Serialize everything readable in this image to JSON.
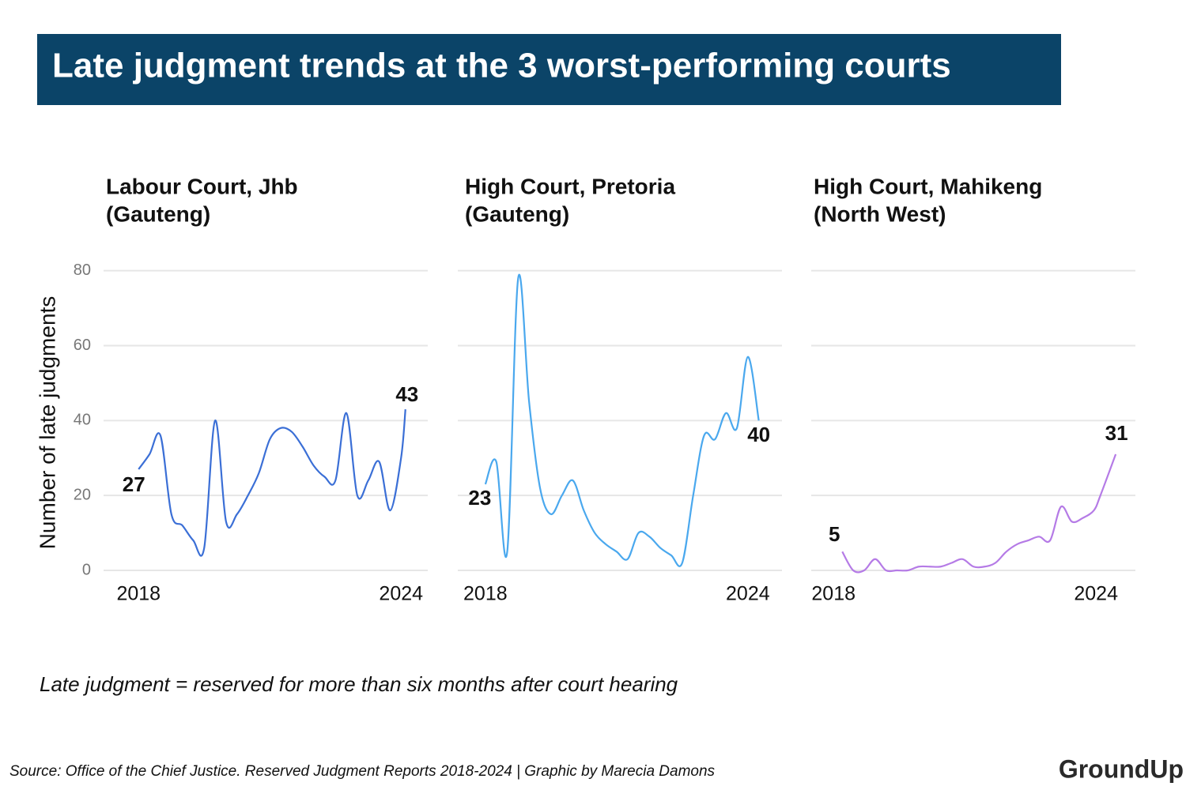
{
  "title": "Late judgment trends at the 3 worst-performing courts",
  "note": "Late judgment = reserved for more than six months after court hearing",
  "source": "Source: Office of the Chief Justice. Reserved Judgment Reports 2018-2024 | Graphic by Marecia Damons",
  "logo": "GroundUp",
  "chart_data": [
    {
      "type": "line",
      "title": [
        "Labour Court, Jhb",
        "(Gauteng)"
      ],
      "y_label": "Number of late judgments",
      "x": [
        2018,
        2018.25,
        2018.5,
        2018.75,
        2019,
        2019.25,
        2019.5,
        2019.75,
        2020,
        2020.25,
        2020.5,
        2020.75,
        2021,
        2021.25,
        2021.5,
        2021.75,
        2022,
        2022.25,
        2022.5,
        2022.75,
        2023,
        2023.25,
        2023.5,
        2023.75,
        2024,
        2024.1
      ],
      "series": [
        {
          "name": "Labour Court, Jhb",
          "color": "#3b6fd6",
          "values": [
            27,
            31,
            36,
            15,
            12,
            8,
            6,
            40,
            13,
            15,
            20,
            26,
            35,
            38,
            37,
            33,
            28,
            25,
            24,
            42,
            20,
            24,
            29,
            16,
            30,
            43
          ]
        }
      ],
      "xlim": [
        2017.2,
        2024.61
      ],
      "xticks": [
        2018,
        2024
      ],
      "ylim": [
        0,
        89
      ],
      "yticks": [
        0,
        20,
        40,
        60,
        80
      ],
      "grid": true
    },
    {
      "type": "line",
      "title": [
        "High Court, Pretoria",
        "(Gauteng)"
      ],
      "x": [
        2018,
        2018.25,
        2018.5,
        2018.75,
        2019,
        2019.25,
        2019.5,
        2019.75,
        2020,
        2020.25,
        2020.5,
        2020.75,
        2021,
        2021.25,
        2021.5,
        2021.75,
        2022,
        2022.25,
        2022.5,
        2022.75,
        2023,
        2023.25,
        2023.5,
        2023.75,
        2024,
        2024.25
      ],
      "series": [
        {
          "name": "High Court, Pretoria",
          "color": "#4aa8ee",
          "values": [
            23,
            29,
            5,
            78,
            45,
            22,
            15,
            20,
            24,
            16,
            10,
            7,
            5,
            3,
            10,
            9,
            6,
            4,
            2,
            20,
            36,
            35,
            42,
            38,
            57,
            40
          ]
        }
      ],
      "xlim": [
        2017.37,
        2024.78
      ],
      "xticks": [
        2018,
        2024
      ],
      "ylim": [
        0,
        89
      ],
      "yticks": [
        0,
        20,
        40,
        60,
        80
      ],
      "grid": true
    },
    {
      "type": "line",
      "title": [
        "High Court, Mahikeng",
        "(North West)"
      ],
      "x": [
        2018.2,
        2018.45,
        2018.7,
        2018.95,
        2019.2,
        2019.45,
        2019.7,
        2019.95,
        2020.2,
        2020.45,
        2020.7,
        2020.95,
        2021.2,
        2021.45,
        2021.7,
        2021.95,
        2022.2,
        2022.45,
        2022.7,
        2022.95,
        2023.2,
        2023.45,
        2023.7,
        2023.95,
        2024.1,
        2024.45
      ],
      "series": [
        {
          "name": "High Court, Mahikeng",
          "color": "#b57be6",
          "values": [
            5,
            0,
            0,
            3,
            0,
            0,
            0,
            1,
            1,
            1,
            2,
            3,
            1,
            1,
            2,
            5,
            7,
            8,
            9,
            8,
            17,
            13,
            14,
            16,
            20,
            31
          ]
        }
      ],
      "xlim": [
        2017.49,
        2024.9
      ],
      "xticks": [
        2018,
        2024
      ],
      "ylim": [
        0,
        89
      ],
      "yticks": [
        0,
        20,
        40,
        60,
        80
      ],
      "grid": true
    }
  ]
}
